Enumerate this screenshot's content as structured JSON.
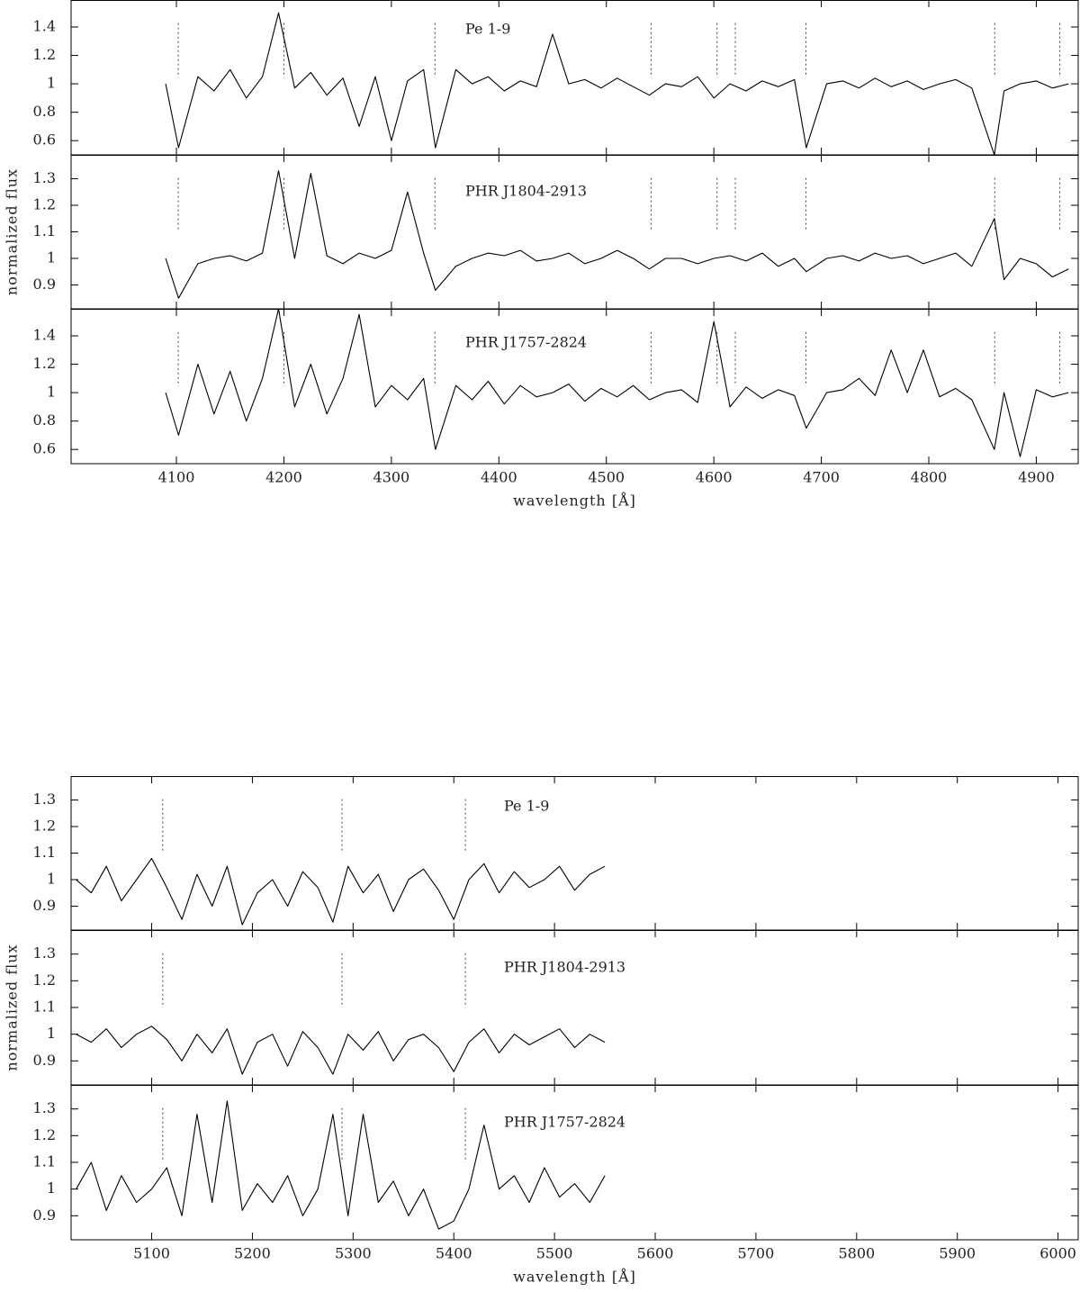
{
  "chart_data": [
    {
      "type": "line",
      "title": "Pe 1-9",
      "xlim": [
        4002,
        4939
      ],
      "ylim": [
        0.5,
        1.59
      ],
      "yticks": [
        0.6,
        0.8,
        1,
        1.2,
        1.4
      ],
      "color": "#000000",
      "vlines": [
        4101.7,
        4200,
        4340.5,
        4541.6,
        4603,
        4620,
        4685.7,
        4861.3,
        4921.9
      ],
      "x": [
        4090,
        4102,
        4120,
        4135,
        4150,
        4165,
        4180,
        4195,
        4210,
        4225,
        4240,
        4255,
        4270,
        4285,
        4300,
        4315,
        4330,
        4341,
        4360,
        4375,
        4390,
        4405,
        4420,
        4435,
        4450,
        4465,
        4480,
        4495,
        4510,
        4525,
        4540,
        4555,
        4570,
        4585,
        4600,
        4615,
        4630,
        4645,
        4660,
        4675,
        4686,
        4705,
        4720,
        4735,
        4750,
        4765,
        4780,
        4795,
        4810,
        4825,
        4840,
        4861,
        4870,
        4885,
        4900,
        4915,
        4930
      ],
      "values": [
        1.0,
        0.55,
        1.05,
        0.95,
        1.1,
        0.9,
        1.05,
        1.5,
        0.97,
        1.08,
        0.92,
        1.04,
        0.7,
        1.05,
        0.6,
        1.02,
        1.1,
        0.55,
        1.1,
        1.0,
        1.05,
        0.95,
        1.02,
        0.98,
        1.35,
        1.0,
        1.03,
        0.97,
        1.04,
        0.98,
        0.92,
        1.0,
        0.98,
        1.05,
        0.9,
        1.0,
        0.95,
        1.02,
        0.98,
        1.03,
        0.55,
        1.0,
        1.02,
        0.97,
        1.04,
        0.98,
        1.02,
        0.96,
        1.0,
        1.03,
        0.97,
        0.5,
        0.95,
        1.0,
        1.02,
        0.97,
        1.0
      ]
    },
    {
      "type": "line",
      "title": "PHR J1804-2913",
      "xlim": [
        4002,
        4939
      ],
      "ylim": [
        0.81,
        1.39
      ],
      "yticks": [
        0.9,
        1,
        1.1,
        1.2,
        1.3
      ],
      "color": "#000000",
      "ylabel": "normalized flux",
      "vlines": [
        4101.7,
        4200,
        4340.5,
        4541.6,
        4603,
        4620,
        4685.7,
        4861.3,
        4921.9
      ],
      "x": [
        4090,
        4102,
        4120,
        4135,
        4150,
        4165,
        4180,
        4195,
        4210,
        4225,
        4240,
        4255,
        4270,
        4285,
        4300,
        4315,
        4330,
        4341,
        4360,
        4375,
        4390,
        4405,
        4420,
        4435,
        4450,
        4465,
        4480,
        4495,
        4510,
        4525,
        4540,
        4555,
        4570,
        4585,
        4600,
        4615,
        4630,
        4645,
        4660,
        4675,
        4686,
        4705,
        4720,
        4735,
        4750,
        4765,
        4780,
        4795,
        4810,
        4825,
        4840,
        4861,
        4870,
        4885,
        4900,
        4915,
        4930
      ],
      "values": [
        1.0,
        0.85,
        0.98,
        1.0,
        1.01,
        0.99,
        1.02,
        1.33,
        1.0,
        1.32,
        1.01,
        0.98,
        1.02,
        1.0,
        1.03,
        1.25,
        1.02,
        0.88,
        0.97,
        1.0,
        1.02,
        1.01,
        1.03,
        0.99,
        1.0,
        1.02,
        0.98,
        1.0,
        1.03,
        1.0,
        0.96,
        1.0,
        1.0,
        0.98,
        1.0,
        1.01,
        0.99,
        1.02,
        0.97,
        1.0,
        0.95,
        1.0,
        1.01,
        0.99,
        1.02,
        1.0,
        1.01,
        0.98,
        1.0,
        1.02,
        0.97,
        1.15,
        0.92,
        1.0,
        0.98,
        0.93,
        0.96
      ]
    },
    {
      "type": "line",
      "title": "PHR J1757-2824",
      "xlim": [
        4002,
        4939
      ],
      "ylim": [
        0.5,
        1.59
      ],
      "yticks": [
        0.6,
        0.8,
        1,
        1.2,
        1.4
      ],
      "color": "#000000",
      "xticks": [
        4100,
        4200,
        4300,
        4400,
        4500,
        4600,
        4700,
        4800,
        4900
      ],
      "xlabel": "wavelength [Å]",
      "vlines": [
        4101.7,
        4200,
        4340.5,
        4541.6,
        4603,
        4620,
        4685.7,
        4861.3,
        4921.9
      ],
      "x": [
        4090,
        4102,
        4120,
        4135,
        4150,
        4165,
        4180,
        4195,
        4210,
        4225,
        4240,
        4255,
        4270,
        4285,
        4300,
        4315,
        4330,
        4341,
        4360,
        4375,
        4390,
        4405,
        4420,
        4435,
        4450,
        4465,
        4480,
        4495,
        4510,
        4525,
        4540,
        4555,
        4570,
        4585,
        4600,
        4615,
        4630,
        4645,
        4660,
        4675,
        4686,
        4705,
        4720,
        4735,
        4750,
        4765,
        4780,
        4795,
        4810,
        4825,
        4840,
        4861,
        4870,
        4885,
        4900,
        4915,
        4930
      ],
      "values": [
        1.0,
        0.7,
        1.2,
        0.85,
        1.15,
        0.8,
        1.1,
        1.59,
        0.9,
        1.2,
        0.85,
        1.1,
        1.55,
        0.9,
        1.05,
        0.95,
        1.1,
        0.6,
        1.05,
        0.95,
        1.08,
        0.92,
        1.05,
        0.97,
        1.0,
        1.06,
        0.94,
        1.03,
        0.97,
        1.05,
        0.95,
        1.0,
        1.02,
        0.93,
        1.5,
        0.9,
        1.04,
        0.96,
        1.02,
        0.98,
        0.75,
        1.0,
        1.02,
        1.1,
        0.98,
        1.3,
        1.0,
        1.3,
        0.97,
        1.03,
        0.95,
        0.6,
        1.0,
        0.55,
        1.02,
        0.97,
        1.0
      ]
    },
    {
      "type": "line",
      "title": "Pe 1-9",
      "xlim": [
        5020,
        6020
      ],
      "ylim": [
        0.81,
        1.39
      ],
      "yticks": [
        0.9,
        1,
        1.1,
        1.2,
        1.3
      ],
      "color": "#000000",
      "vlines": [
        5111,
        5289,
        5411.5
      ],
      "x": [
        5025,
        5040,
        5055,
        5070,
        5085,
        5100,
        5115,
        5130,
        5145,
        5160,
        5175,
        5190,
        5205,
        5220,
        5235,
        5250,
        5265,
        5280,
        5295,
        5310,
        5325,
        5340,
        5355,
        5370,
        5385,
        5400,
        5415,
        5430,
        5445,
        5460,
        5475,
        5490,
        5505,
        5520,
        5535,
        5550
      ],
      "values": [
        1.0,
        0.95,
        1.05,
        0.92,
        1.0,
        1.08,
        0.97,
        0.85,
        1.02,
        0.9,
        1.05,
        0.83,
        0.95,
        1.0,
        0.9,
        1.03,
        0.97,
        0.84,
        1.05,
        0.95,
        1.02,
        0.88,
        1.0,
        1.04,
        0.96,
        0.85,
        1.0,
        1.06,
        0.95,
        1.03,
        0.97,
        1.0,
        1.05,
        0.96,
        1.02,
        1.05
      ]
    },
    {
      "type": "line",
      "title": "PHR J1804-2913",
      "xlim": [
        5020,
        6020
      ],
      "ylim": [
        0.81,
        1.39
      ],
      "yticks": [
        0.9,
        1,
        1.1,
        1.2,
        1.3
      ],
      "color": "#000000",
      "ylabel": "normalized flux",
      "vlines": [
        5111,
        5289,
        5411.5
      ],
      "x": [
        5025,
        5040,
        5055,
        5070,
        5085,
        5100,
        5115,
        5130,
        5145,
        5160,
        5175,
        5190,
        5205,
        5220,
        5235,
        5250,
        5265,
        5280,
        5295,
        5310,
        5325,
        5340,
        5355,
        5370,
        5385,
        5400,
        5415,
        5430,
        5445,
        5460,
        5475,
        5490,
        5505,
        5520,
        5535,
        5550
      ],
      "values": [
        1.0,
        0.97,
        1.02,
        0.95,
        1.0,
        1.03,
        0.98,
        0.9,
        1.0,
        0.93,
        1.02,
        0.85,
        0.97,
        1.0,
        0.88,
        1.01,
        0.95,
        0.85,
        1.0,
        0.94,
        1.01,
        0.9,
        0.98,
        1.0,
        0.95,
        0.86,
        0.97,
        1.02,
        0.93,
        1.0,
        0.96,
        0.99,
        1.02,
        0.95,
        1.0,
        0.97
      ]
    },
    {
      "type": "line",
      "title": "PHR J1757-2824",
      "xlim": [
        5020,
        6020
      ],
      "ylim": [
        0.81,
        1.39
      ],
      "yticks": [
        0.9,
        1,
        1.1,
        1.2,
        1.3
      ],
      "color": "#000000",
      "xticks": [
        5100,
        5200,
        5300,
        5400,
        5500,
        5600,
        5700,
        5800,
        5900,
        6000
      ],
      "xlabel": "wavelength [Å]",
      "vlines": [
        5111,
        5289,
        5411.5
      ],
      "x": [
        5025,
        5040,
        5055,
        5070,
        5085,
        5100,
        5115,
        5130,
        5145,
        5160,
        5175,
        5190,
        5205,
        5220,
        5235,
        5250,
        5265,
        5280,
        5295,
        5310,
        5325,
        5340,
        5355,
        5370,
        5385,
        5400,
        5415,
        5430,
        5445,
        5460,
        5475,
        5490,
        5505,
        5520,
        5535,
        5550
      ],
      "values": [
        1.0,
        1.1,
        0.92,
        1.05,
        0.95,
        1.0,
        1.08,
        0.9,
        1.28,
        0.95,
        1.33,
        0.92,
        1.02,
        0.95,
        1.05,
        0.9,
        1.0,
        1.28,
        0.9,
        1.28,
        0.95,
        1.03,
        0.9,
        1.0,
        0.85,
        0.88,
        1.0,
        1.24,
        1.0,
        1.05,
        0.95,
        1.08,
        0.97,
        1.02,
        0.95,
        1.05
      ]
    }
  ]
}
